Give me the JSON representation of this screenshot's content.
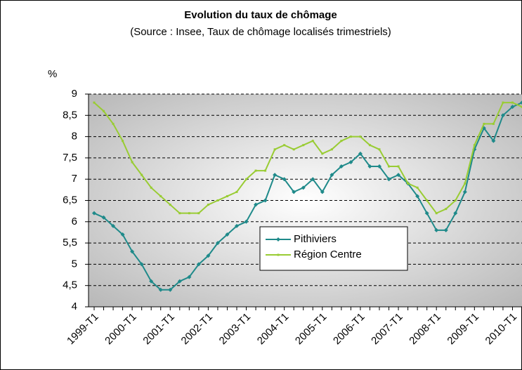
{
  "chart_data": {
    "type": "line",
    "title": "Evolution du taux de chômage",
    "subtitle": "(Source : Insee, Taux de chômage localisés trimestriels)",
    "y_label": "%",
    "categories": [
      "1999-T1",
      null,
      null,
      null,
      "2000-T1",
      null,
      null,
      null,
      "2001-T1",
      null,
      null,
      null,
      "2002-T1",
      null,
      null,
      null,
      "2003-T1",
      null,
      null,
      null,
      "2004-T1",
      null,
      null,
      null,
      "2005-T1",
      null,
      null,
      null,
      "2006-T1",
      null,
      null,
      null,
      "2007-T1",
      null,
      null,
      null,
      "2008-T1",
      null,
      null,
      null,
      "2009-T1",
      null,
      null,
      null,
      "2010-T1",
      null
    ],
    "series": [
      {
        "name": "Pithiviers",
        "color": "#1f8a8a",
        "values": [
          6.2,
          6.1,
          5.9,
          5.7,
          5.3,
          5.0,
          4.6,
          4.4,
          4.4,
          4.6,
          4.7,
          5.0,
          5.2,
          5.5,
          5.7,
          5.9,
          6.0,
          6.4,
          6.5,
          7.1,
          7.0,
          6.7,
          6.8,
          7.0,
          6.7,
          7.1,
          7.3,
          7.4,
          7.6,
          7.3,
          7.3,
          7.0,
          7.1,
          6.9,
          6.6,
          6.2,
          5.8,
          5.8,
          6.2,
          6.7,
          7.7,
          8.2,
          7.9,
          8.5,
          8.7,
          8.8
        ]
      },
      {
        "name": "Région Centre",
        "color": "#99cc33",
        "values": [
          8.8,
          8.6,
          8.3,
          7.9,
          7.4,
          7.1,
          6.8,
          6.6,
          6.4,
          6.2,
          6.2,
          6.2,
          6.4,
          6.5,
          6.6,
          6.7,
          7.0,
          7.2,
          7.2,
          7.7,
          7.8,
          7.7,
          7.8,
          7.9,
          7.6,
          7.7,
          7.9,
          8.0,
          8.0,
          7.8,
          7.7,
          7.3,
          7.3,
          6.9,
          6.8,
          6.5,
          6.2,
          6.3,
          6.5,
          6.9,
          7.8,
          8.3,
          8.3,
          8.8,
          8.8,
          8.7
        ]
      }
    ],
    "ylim": [
      4,
      9
    ],
    "yticks": [
      4,
      {
        "value": 4.5,
        "label": "4,5"
      },
      5,
      {
        "value": 5.5,
        "label": "5,5"
      },
      6,
      {
        "value": 6.5,
        "label": "6,5"
      },
      7,
      {
        "value": 7.5,
        "label": "7,5"
      },
      8,
      {
        "value": 8.5,
        "label": "8,5"
      },
      9
    ],
    "grid": true,
    "legend": "center"
  }
}
